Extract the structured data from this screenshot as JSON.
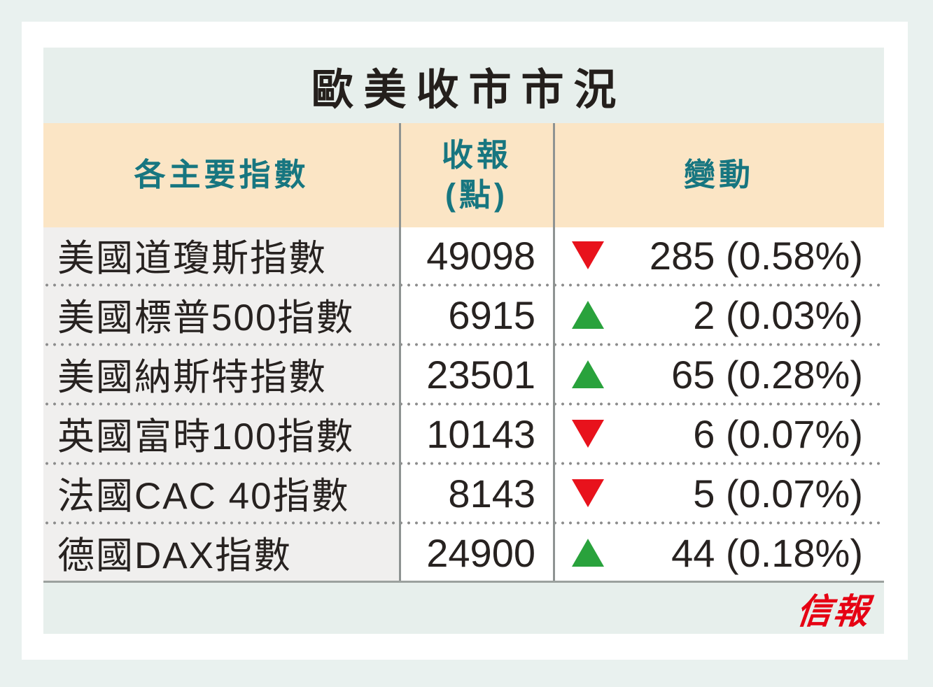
{
  "table": {
    "title": "歐美收市市況",
    "columns": {
      "index": "各主要指數",
      "close_line1": "收報",
      "close_line2": "(點)",
      "change": "變動"
    },
    "rows": [
      {
        "name": "美國道瓊斯指數",
        "close": "49098",
        "direction": "down",
        "change": "285 (0.58%)"
      },
      {
        "name": "美國標普500指數",
        "close": "6915",
        "direction": "up",
        "change": "2 (0.03%)"
      },
      {
        "name": "美國納斯特指數",
        "close": "23501",
        "direction": "up",
        "change": "65 (0.28%)"
      },
      {
        "name": "英國富時100指數",
        "close": "10143",
        "direction": "down",
        "change": "6 (0.07%)"
      },
      {
        "name": "法國CAC 40指數",
        "close": "8143",
        "direction": "down",
        "change": "5 (0.07%)"
      },
      {
        "name": "德國DAX指數",
        "close": "24900",
        "direction": "up",
        "change": "44 (0.18%)"
      }
    ],
    "logo": "信報",
    "colors": {
      "page_background": "#e9f1ef",
      "title_band": "#e7efec",
      "header_band": "#fbe5c5",
      "header_text": "#177680",
      "name_column": "#f0efee",
      "text": "#272220",
      "down_red": "#e8121c",
      "up_green": "#29a23c",
      "logo_red": "#e60013"
    }
  },
  "chart_data": {
    "type": "table",
    "title": "歐美收市市況",
    "columns": [
      "各主要指數",
      "收報(點)",
      "變動"
    ],
    "rows": [
      {
        "index_name": "美國道瓊斯指數",
        "close": 49098,
        "direction": "down",
        "change_abs": 285,
        "change_pct": 0.58
      },
      {
        "index_name": "美國標普500指數",
        "close": 6915,
        "direction": "up",
        "change_abs": 2,
        "change_pct": 0.03
      },
      {
        "index_name": "美國納斯特指數",
        "close": 23501,
        "direction": "up",
        "change_abs": 65,
        "change_pct": 0.28
      },
      {
        "index_name": "英國富時100指數",
        "close": 10143,
        "direction": "down",
        "change_abs": 6,
        "change_pct": 0.07
      },
      {
        "index_name": "法國CAC 40指數",
        "close": 8143,
        "direction": "down",
        "change_abs": 5,
        "change_pct": 0.07
      },
      {
        "index_name": "德國DAX指數",
        "close": 24900,
        "direction": "up",
        "change_abs": 44,
        "change_pct": 0.18
      }
    ],
    "source_logo": "信報",
    "layout": {
      "grid": "dotted row separators",
      "legend": "none"
    }
  }
}
